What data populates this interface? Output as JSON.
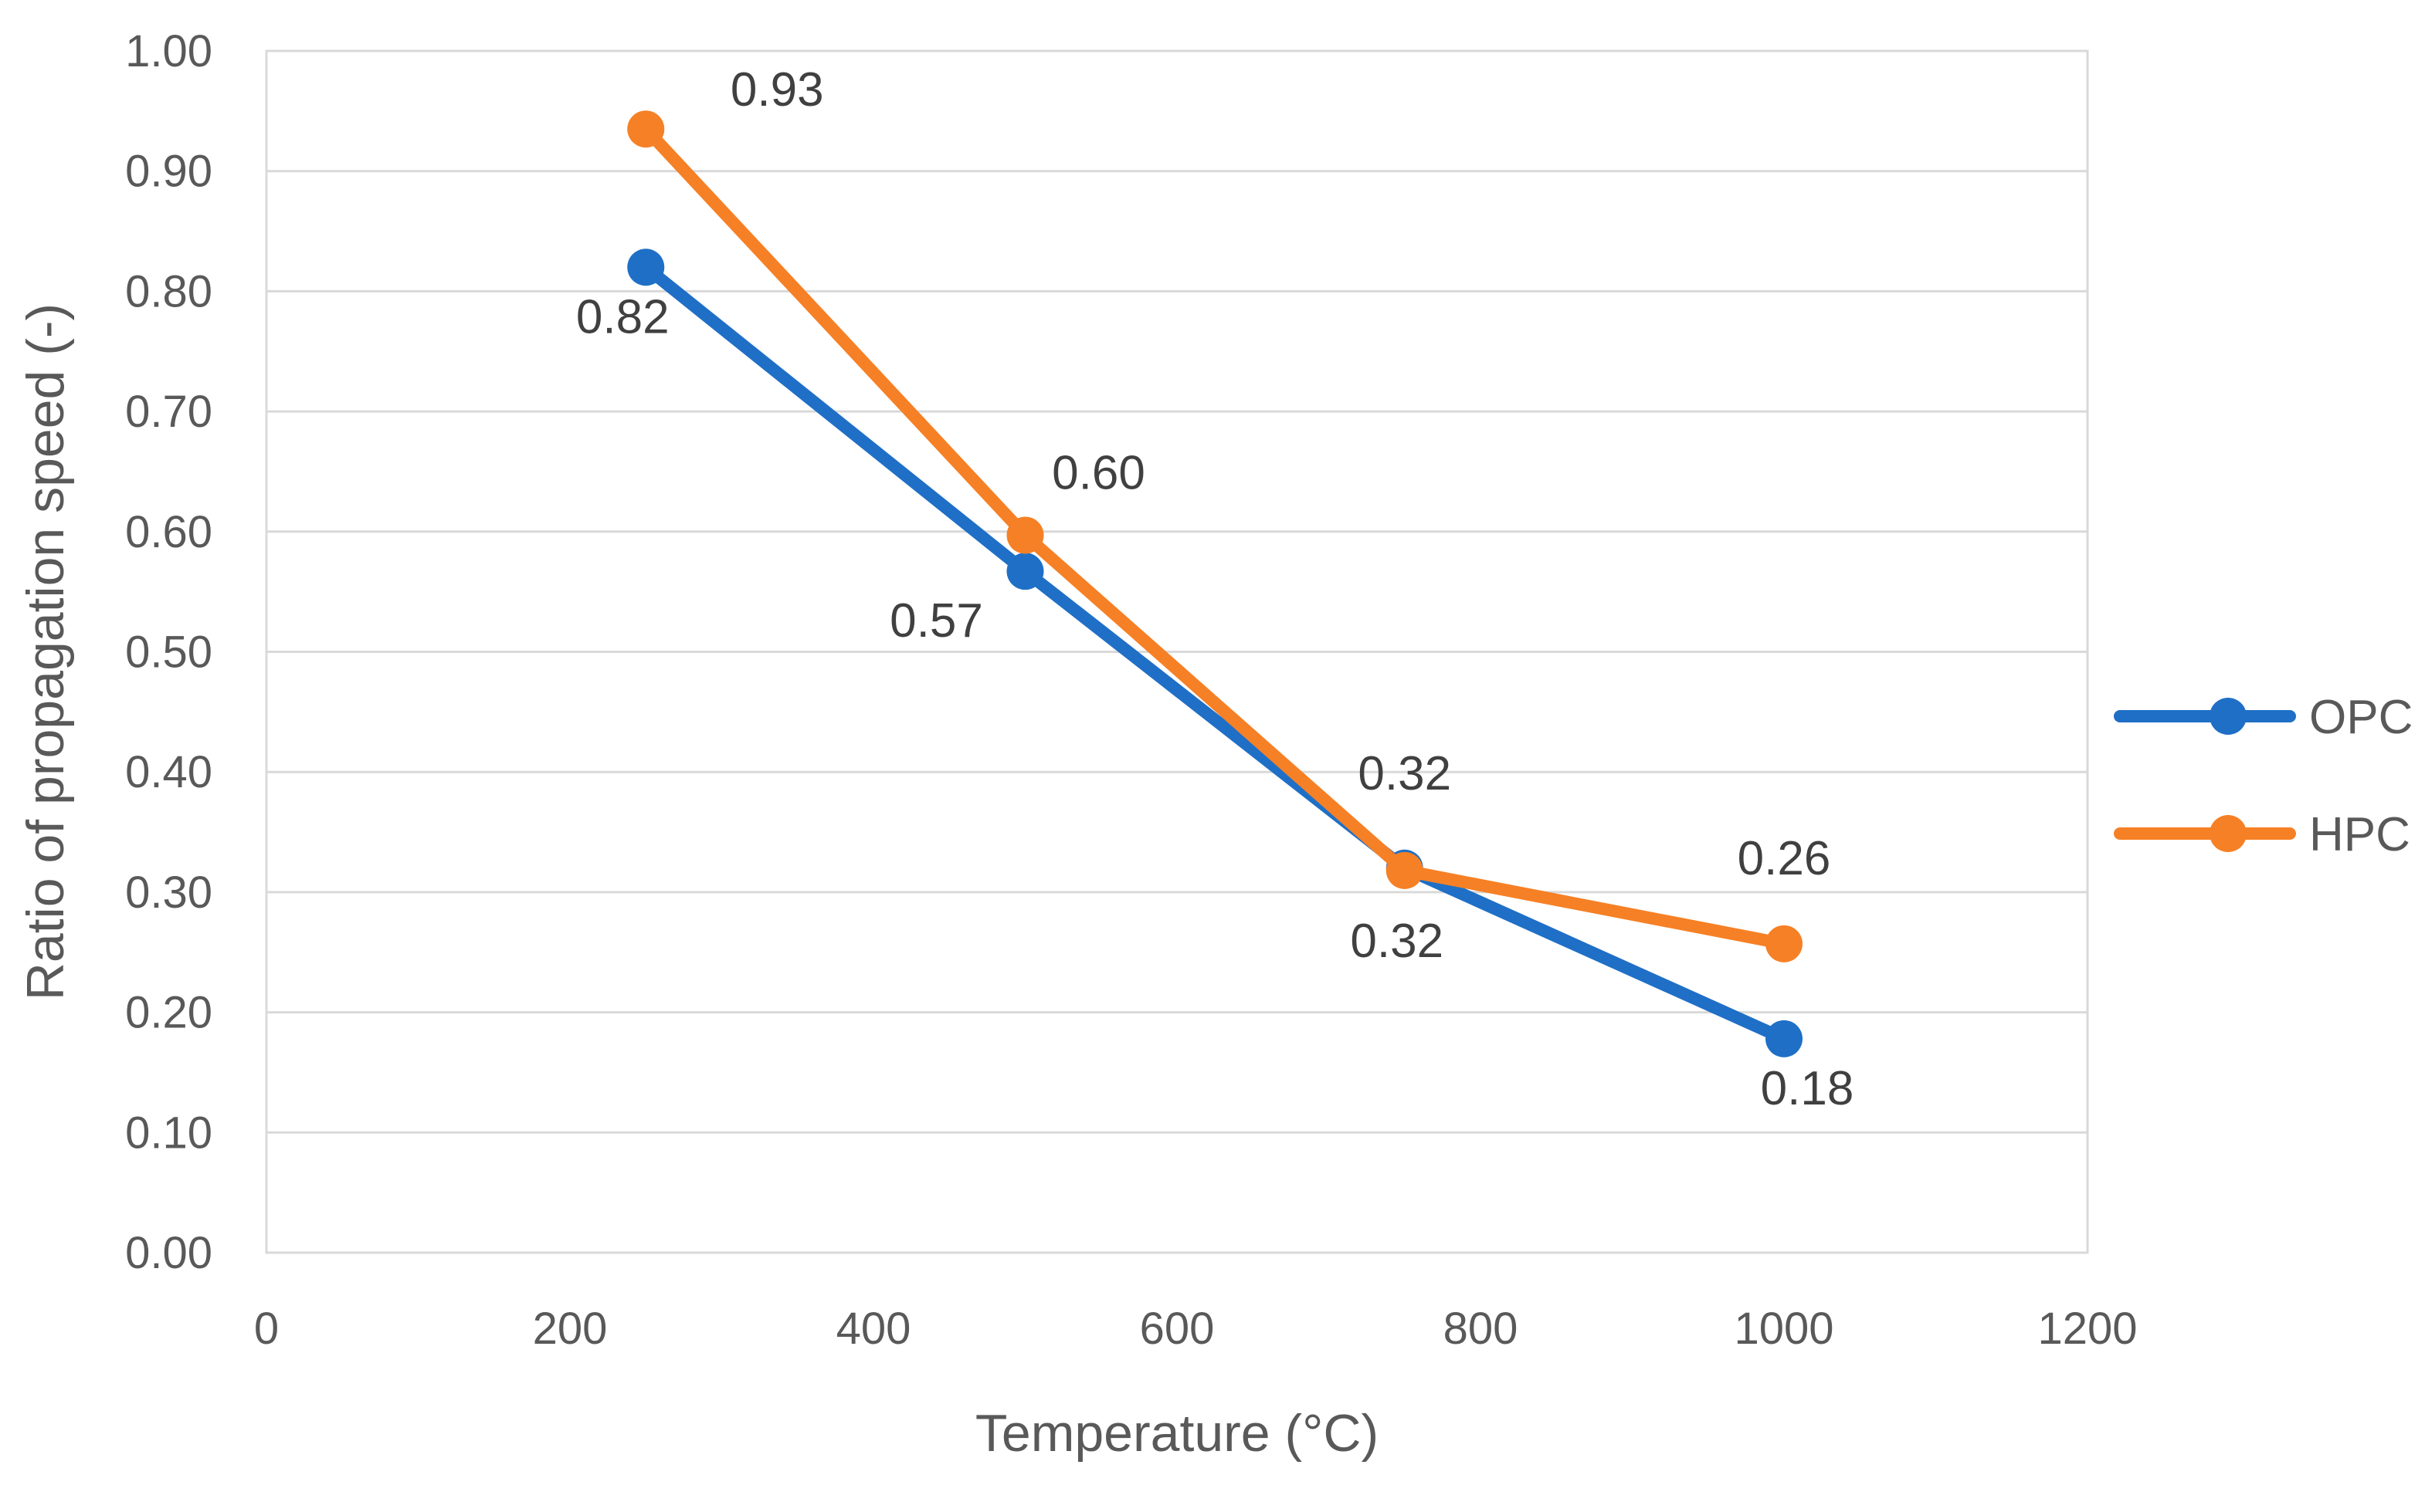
{
  "chart_data": {
    "type": "line",
    "title": "",
    "xlabel": "Temperature (°C)",
    "ylabel": "Ratio of propagation speed (-)",
    "xlim": [
      0,
      1200
    ],
    "ylim": [
      0,
      1.0
    ],
    "xticks": [
      0,
      200,
      400,
      600,
      800,
      1000,
      1200
    ],
    "yticks": [
      0.0,
      0.1,
      0.2,
      0.3,
      0.4,
      0.5,
      0.6,
      0.7,
      0.8,
      0.9,
      1.0
    ],
    "x_tick_labels": [
      "0",
      "200",
      "400",
      "600",
      "800",
      "1000",
      "1200"
    ],
    "y_tick_labels": [
      "0.00",
      "0.10",
      "0.20",
      "0.30",
      "0.40",
      "0.50",
      "0.60",
      "0.70",
      "0.80",
      "0.90",
      "1.00"
    ],
    "grid": true,
    "legend": "right",
    "x": [
      250,
      500,
      750,
      1000
    ],
    "series": [
      {
        "name": "OPC",
        "color": "#1f6fc6",
        "values": [
          0.82,
          0.567,
          0.32,
          0.178
        ],
        "labels": [
          "0.82",
          "0.57",
          "0.32",
          "0.18"
        ],
        "label_position": "below"
      },
      {
        "name": "HPC",
        "color": "#f68025",
        "values": [
          0.935,
          0.597,
          0.318,
          0.257
        ],
        "labels": [
          "0.93",
          "0.60",
          "0.32",
          "0.26"
        ],
        "label_position": "above"
      }
    ]
  }
}
